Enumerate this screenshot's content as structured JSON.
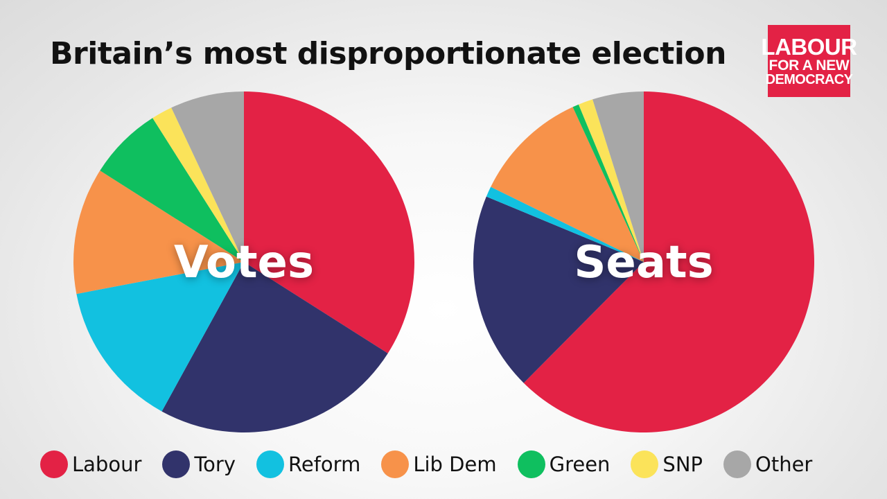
{
  "title": "Britain’s most disproportionate election",
  "logo": {
    "line1": "LABOUR",
    "line2": "FOR A NEW",
    "line3": "DEMOCRACY",
    "color": "#e32245"
  },
  "parties": [
    {
      "name": "Labour",
      "color": "#e32245"
    },
    {
      "name": "Tory",
      "color": "#31336b"
    },
    {
      "name": "Reform",
      "color": "#12c1e0"
    },
    {
      "name": "Lib Dem",
      "color": "#f7924a"
    },
    {
      "name": "Green",
      "color": "#0fbf5f"
    },
    {
      "name": "SNP",
      "color": "#fbe35a"
    },
    {
      "name": "Other",
      "color": "#a7a7a7"
    }
  ],
  "chart_data": [
    {
      "type": "pie",
      "title": "Votes",
      "categories": [
        "Labour",
        "Tory",
        "Reform",
        "Lib Dem",
        "Green",
        "SNP",
        "Other"
      ],
      "values": [
        34,
        24,
        14,
        12,
        7,
        2,
        7
      ],
      "start_angle_deg": 0,
      "direction": "clockwise"
    },
    {
      "type": "pie",
      "title": "Seats",
      "categories": [
        "Labour",
        "Tory",
        "Reform",
        "Lib Dem",
        "Green",
        "SNP",
        "Other"
      ],
      "values": [
        63,
        19,
        1,
        11,
        0.6,
        1.4,
        4.9
      ],
      "start_angle_deg": 0,
      "direction": "clockwise"
    }
  ]
}
